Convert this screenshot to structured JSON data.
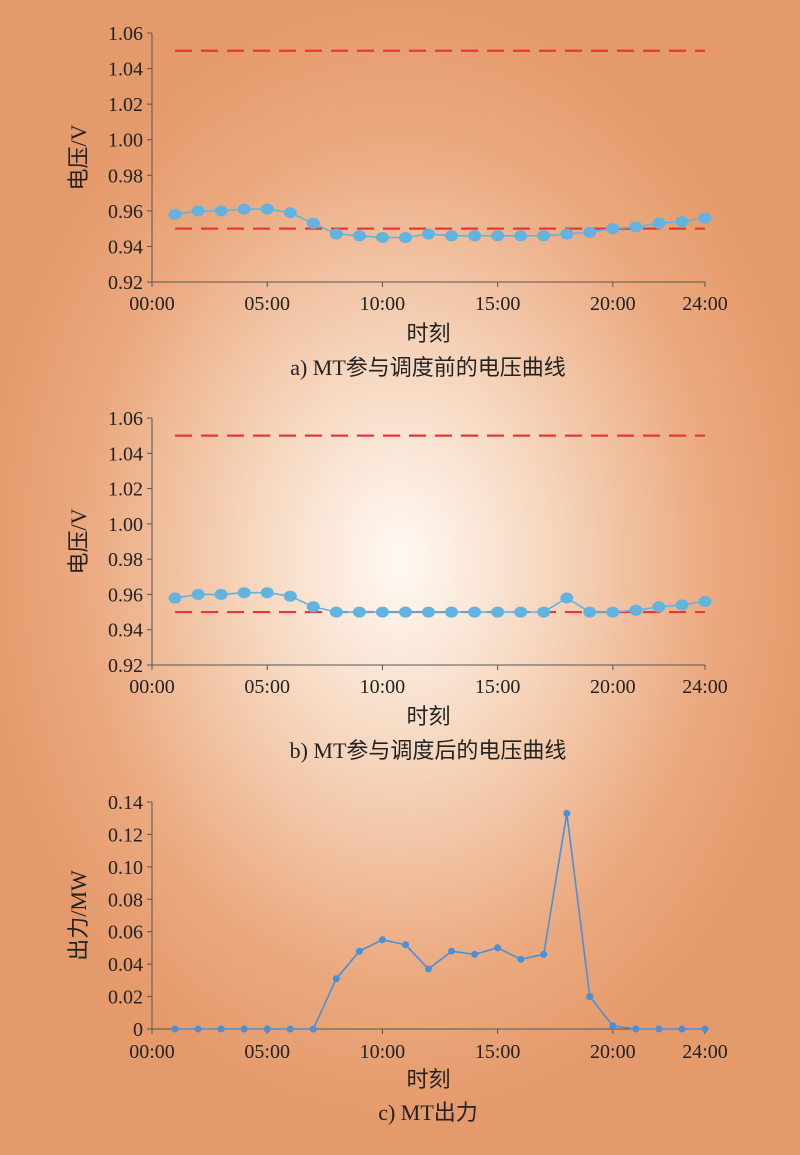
{
  "chart_data": [
    {
      "type": "line",
      "caption": "a) MT参与调度前的电压曲线",
      "xlabel": "时刻",
      "ylabel": "电压/V",
      "ylim": [
        0.92,
        1.06
      ],
      "yticks": [
        "0.92",
        "0.94",
        "0.96",
        "0.98",
        "1.00",
        "1.02",
        "1.04",
        "1.06"
      ],
      "xlim": [
        0,
        24
      ],
      "xticks": [
        {
          "value": 0,
          "label": "00:00"
        },
        {
          "value": 5,
          "label": "05:00"
        },
        {
          "value": 10,
          "label": "10:00"
        },
        {
          "value": 15,
          "label": "15:00"
        },
        {
          "value": 20,
          "label": "20:00"
        },
        {
          "value": 24,
          "label": "24:00"
        }
      ],
      "series": [
        {
          "color": "#63b3e0",
          "marker": "large-circle",
          "x": [
            1,
            2,
            3,
            4,
            5,
            6,
            7,
            8,
            9,
            10,
            11,
            12,
            13,
            14,
            15,
            16,
            17,
            18,
            19,
            20,
            21,
            22,
            23,
            24
          ],
          "values": [
            0.958,
            0.96,
            0.96,
            0.961,
            0.961,
            0.959,
            0.953,
            0.947,
            0.946,
            0.945,
            0.945,
            0.947,
            0.946,
            0.946,
            0.946,
            0.946,
            0.946,
            0.947,
            0.948,
            0.95,
            0.951,
            0.953,
            0.954,
            0.956
          ]
        }
      ],
      "reference_lines": [
        {
          "value": 1.05,
          "color": "#e53935",
          "style": "dashed"
        },
        {
          "value": 0.95,
          "color": "#e53935",
          "style": "dashed"
        }
      ],
      "grid": false
    },
    {
      "type": "line",
      "caption": "b) MT参与调度后的电压曲线",
      "xlabel": "时刻",
      "ylabel": "电压/V",
      "ylim": [
        0.92,
        1.06
      ],
      "yticks": [
        "0.92",
        "0.94",
        "0.96",
        "0.98",
        "1.00",
        "1.02",
        "1.04",
        "1.06"
      ],
      "xlim": [
        0,
        24
      ],
      "xticks": [
        {
          "value": 0,
          "label": "00:00"
        },
        {
          "value": 5,
          "label": "05:00"
        },
        {
          "value": 10,
          "label": "10:00"
        },
        {
          "value": 15,
          "label": "15:00"
        },
        {
          "value": 20,
          "label": "20:00"
        },
        {
          "value": 24,
          "label": "24:00"
        }
      ],
      "series": [
        {
          "color": "#63b3e0",
          "marker": "large-circle",
          "x": [
            1,
            2,
            3,
            4,
            5,
            6,
            7,
            8,
            9,
            10,
            11,
            12,
            13,
            14,
            15,
            16,
            17,
            18,
            19,
            20,
            21,
            22,
            23,
            24
          ],
          "values": [
            0.958,
            0.96,
            0.96,
            0.961,
            0.961,
            0.959,
            0.953,
            0.95,
            0.95,
            0.95,
            0.95,
            0.95,
            0.95,
            0.95,
            0.95,
            0.95,
            0.95,
            0.958,
            0.95,
            0.95,
            0.951,
            0.953,
            0.954,
            0.956
          ]
        }
      ],
      "reference_lines": [
        {
          "value": 1.05,
          "color": "#e53935",
          "style": "dashed"
        },
        {
          "value": 0.95,
          "color": "#e53935",
          "style": "dashed"
        }
      ],
      "grid": false
    },
    {
      "type": "line",
      "caption": "c) MT出力",
      "xlabel": "时刻",
      "ylabel": "出力/MW",
      "ylim": [
        0,
        0.14
      ],
      "yticks": [
        "0",
        "0.02",
        "0.04",
        "0.06",
        "0.08",
        "0.10",
        "0.12",
        "0.14"
      ],
      "xlim": [
        0,
        24
      ],
      "xticks": [
        {
          "value": 0,
          "label": "00:00"
        },
        {
          "value": 5,
          "label": "05:00"
        },
        {
          "value": 10,
          "label": "10:00"
        },
        {
          "value": 15,
          "label": "15:00"
        },
        {
          "value": 20,
          "label": "20:00"
        },
        {
          "value": 24,
          "label": "24:00"
        }
      ],
      "series": [
        {
          "color": "#4a90d9",
          "marker": "small-circle",
          "x": [
            1,
            2,
            3,
            4,
            5,
            6,
            7,
            8,
            9,
            10,
            11,
            12,
            13,
            14,
            15,
            16,
            17,
            18,
            19,
            20,
            21,
            22,
            23,
            24
          ],
          "values": [
            0,
            0,
            0,
            0,
            0,
            0,
            0,
            0.031,
            0.048,
            0.055,
            0.052,
            0.037,
            0.048,
            0.046,
            0.05,
            0.043,
            0.046,
            0.133,
            0.02,
            0.002,
            0,
            0,
            0,
            0
          ]
        }
      ],
      "grid": false
    }
  ]
}
